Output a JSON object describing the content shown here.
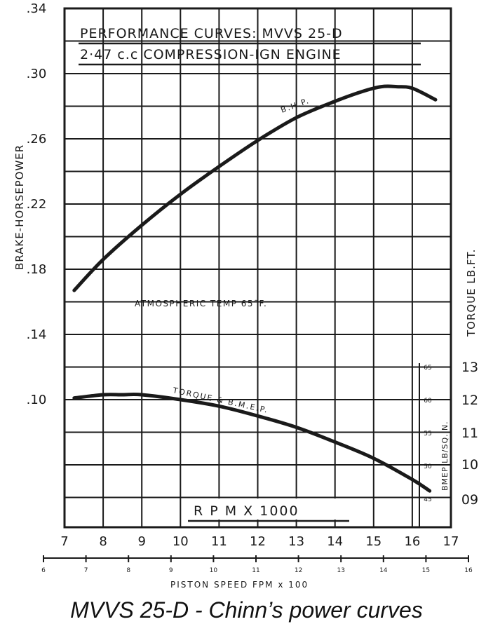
{
  "title_line1": "PERFORMANCE CURVES: MVVS 25-D",
  "title_line2": "2·47 c.c COMPRESSION-IGN ENGINE",
  "caption": "MVVS 25-D - Chinn’s power curves",
  "chart_data": {
    "type": "line",
    "xlabel": "R P M X 1000",
    "ylabel_left": "BRAKE-HORSEPOWER",
    "ylabel_right": "TORQUE LB.FT.",
    "ylabel_bmep": "BMEP LB/SQ.IN.",
    "x2label": "PISTON SPEED FPM x 100",
    "annotation": "ATMOSPHERIC TEMP 65°F.",
    "xlim": [
      7,
      17
    ],
    "x_ticks": [
      "7",
      "8",
      "9",
      "10",
      "11",
      "12",
      "13",
      "14",
      "15",
      "16",
      "17"
    ],
    "ylim_left": [
      0.02,
      0.34
    ],
    "y_ticks_left": [
      ".34",
      ".30",
      ".26",
      ".22",
      ".18",
      ".14",
      ".10"
    ],
    "y_ticks_right": [
      "13",
      "12",
      "11",
      "10",
      "09"
    ],
    "y_ticks_bmep": [
      "65",
      "60",
      "55",
      "50",
      "45"
    ],
    "x2_ticks": [
      "6",
      "7",
      "8",
      "9",
      "10",
      "11",
      "12",
      "13",
      "14",
      "15",
      "16"
    ],
    "grid": true,
    "series": [
      {
        "name": "B.H.P.",
        "x": [
          7.25,
          8.0,
          9.0,
          10.0,
          11.0,
          12.0,
          13.0,
          14.0,
          14.7,
          15.2,
          15.6,
          16.0,
          16.6
        ],
        "y": [
          0.167,
          0.186,
          0.207,
          0.226,
          0.243,
          0.259,
          0.273,
          0.283,
          0.289,
          0.292,
          0.292,
          0.291,
          0.284
        ]
      },
      {
        "name": "TORQUE & B.M.E.P.",
        "x": [
          7.25,
          8.0,
          8.5,
          9.0,
          10.0,
          11.0,
          12.0,
          13.0,
          14.0,
          15.0,
          16.0,
          16.45
        ],
        "y": [
          0.101,
          0.103,
          0.103,
          0.103,
          0.1,
          0.096,
          0.09,
          0.083,
          0.074,
          0.064,
          0.051,
          0.044
        ]
      }
    ]
  }
}
